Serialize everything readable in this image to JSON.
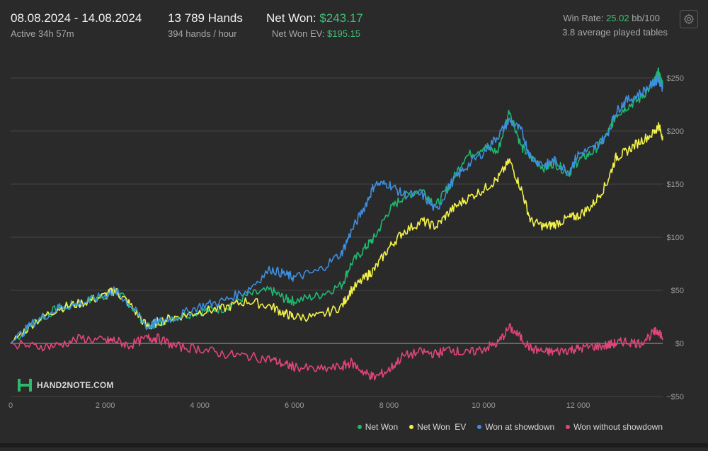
{
  "header": {
    "date_range": "08.08.2024 - 14.08.2024",
    "active": "Active 34h 57m",
    "hands": "13 789 Hands",
    "hands_per_hour": "394 hands / hour",
    "net_won_label": "Net Won:",
    "net_won_value": "$243.17",
    "net_won_ev_label": "Net Won  EV:",
    "net_won_ev_value": "$195.15",
    "win_rate_label": "Win Rate:",
    "win_rate_value": "25.02",
    "win_rate_unit": "bb/100",
    "avg_tables": "3.8 average played tables",
    "settings_icon": "gear-icon"
  },
  "logo": {
    "text": "HAND2NOTE.COM",
    "icon": "h2n-logo-icon"
  },
  "colors": {
    "net_won": "#1fb870",
    "net_won_ev": "#f2f24a",
    "showdown": "#3e8fe0",
    "no_showdown": "#e0457a",
    "grid": "#444444",
    "zero_line": "#8a8a8a",
    "axis_text": "#9a9a9a"
  },
  "chart_data": {
    "type": "line",
    "xlabel": "",
    "ylabel": "",
    "xlim": [
      0,
      13789
    ],
    "ylim": [
      -50,
      270
    ],
    "x_ticks": [
      0,
      2000,
      4000,
      6000,
      8000,
      10000,
      12000
    ],
    "x_tick_labels": [
      "0",
      "2 000",
      "4 000",
      "6 000",
      "8 000",
      "10 000",
      "12 000"
    ],
    "y_ticks": [
      -50,
      0,
      50,
      100,
      150,
      200,
      250
    ],
    "y_tick_labels": [
      "−$50",
      "$0",
      "$50",
      "$100",
      "$150",
      "$200",
      "$250"
    ],
    "grid": true,
    "legend_position": "bottom-right",
    "x": [
      0,
      500,
      1000,
      1500,
      2000,
      2200,
      2500,
      2900,
      3100,
      3500,
      4000,
      4500,
      5000,
      5500,
      5800,
      6000,
      6500,
      7000,
      7200,
      7500,
      7700,
      8000,
      8300,
      8700,
      9000,
      9300,
      9600,
      10000,
      10300,
      10550,
      10800,
      11000,
      11300,
      11500,
      11800,
      12000,
      12300,
      12600,
      12800,
      13000,
      13300,
      13600,
      13700,
      13789
    ],
    "series": [
      {
        "name": "Net Won",
        "values": [
          0,
          20,
          33,
          38,
          45,
          50,
          38,
          15,
          20,
          25,
          30,
          33,
          45,
          50,
          42,
          40,
          45,
          55,
          75,
          90,
          100,
          125,
          138,
          145,
          130,
          150,
          175,
          185,
          180,
          220,
          185,
          175,
          165,
          170,
          160,
          172,
          180,
          195,
          215,
          222,
          230,
          245,
          255,
          243
        ]
      },
      {
        "name": "Net Won  EV",
        "values": [
          0,
          20,
          33,
          38,
          45,
          50,
          38,
          15,
          20,
          25,
          30,
          33,
          40,
          35,
          28,
          25,
          25,
          35,
          50,
          62,
          70,
          90,
          105,
          115,
          110,
          125,
          135,
          145,
          155,
          172,
          145,
          115,
          110,
          112,
          118,
          120,
          130,
          150,
          175,
          180,
          190,
          198,
          205,
          195
        ]
      },
      {
        "name": "Won at showdown",
        "values": [
          0,
          20,
          33,
          38,
          45,
          50,
          38,
          15,
          20,
          25,
          35,
          40,
          50,
          70,
          65,
          62,
          68,
          85,
          105,
          130,
          150,
          150,
          140,
          140,
          125,
          150,
          165,
          180,
          195,
          210,
          200,
          175,
          168,
          172,
          162,
          178,
          183,
          195,
          218,
          228,
          235,
          245,
          250,
          240
        ]
      },
      {
        "name": "Won without showdown",
        "values": [
          0,
          -3,
          -2,
          5,
          2,
          3,
          -2,
          5,
          5,
          -3,
          -5,
          -10,
          -12,
          -15,
          -20,
          -22,
          -25,
          -22,
          -18,
          -28,
          -32,
          -25,
          -12,
          -8,
          -10,
          -5,
          -10,
          -5,
          0,
          15,
          5,
          -5,
          -8,
          -8,
          -6,
          -5,
          -3,
          -2,
          0,
          2,
          0,
          10,
          12,
          5
        ]
      }
    ]
  }
}
